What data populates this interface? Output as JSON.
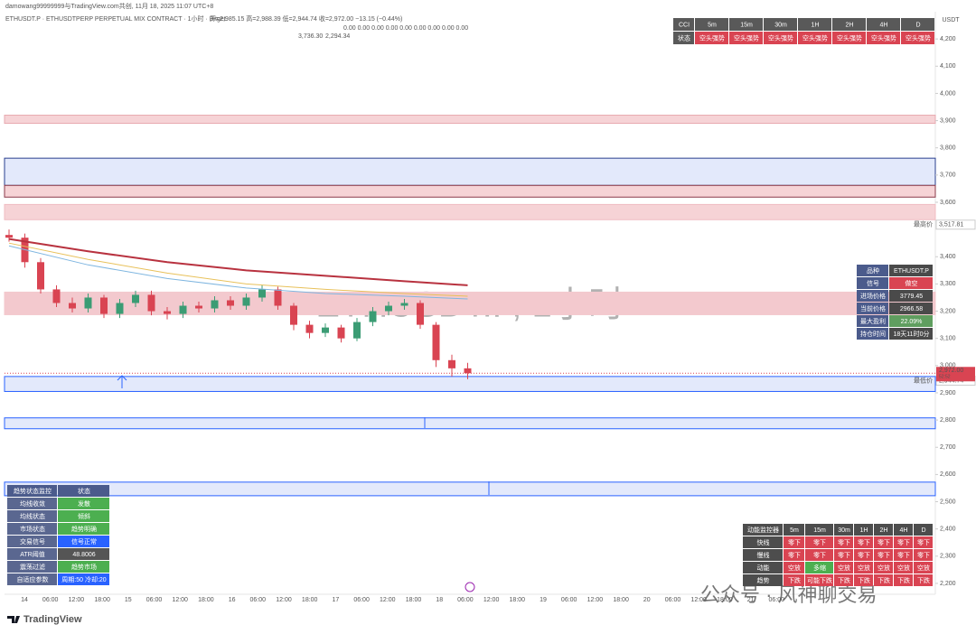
{
  "header": {
    "author_line": "damowang99999999与TradingView.com共创, 11月 18, 2025 11:07 UTC+8",
    "symbol_line": "ETHUSDT.P · ETHUSDTPERP PERPETUAL MIX CONTRACT · 1小时 · Bitget",
    "ohlc_line": "开=2,985.15 高=2,988.39 低=2,944.74 收=2,972.00 −13.15 (−0.44%)",
    "indicator_values": "0.00 0.00 0.00 0.00 0.00 0.00 0.00 0.00 0.00",
    "indicator_levels": [
      "3,736.30",
      "2,294.34"
    ],
    "currency": "USDT",
    "brand": "TradingView",
    "watermark_account": "公众号 · 风神聊交易"
  },
  "chart_data": {
    "type": "candlestick",
    "watermark": "ETHUSDT.P, 1小时",
    "categories": [
      "14",
      "06:00",
      "12:00",
      "18:00",
      "15",
      "06:00",
      "12:00",
      "18:00",
      "16",
      "06:00",
      "12:00",
      "18:00",
      "17",
      "06:00",
      "12:00",
      "18:00",
      "18",
      "06:00",
      "12:00",
      "18:00",
      "19",
      "06:00",
      "12:00",
      "18:00",
      "20",
      "06:00",
      "12:00",
      "18:00",
      "21",
      "06:00"
    ],
    "open": [
      3480,
      3470,
      3380,
      3280,
      3230,
      3210,
      3250,
      3190,
      3230,
      3260,
      3200,
      3190,
      3220,
      3210,
      3240,
      3220,
      3250,
      3280,
      3220,
      3150,
      3120,
      3140,
      3100,
      3160,
      3200,
      3220,
      3230,
      3150,
      3020,
      2990
    ],
    "high": [
      3500,
      3485,
      3395,
      3295,
      3250,
      3265,
      3260,
      3245,
      3275,
      3275,
      3215,
      3235,
      3235,
      3255,
      3255,
      3265,
      3295,
      3290,
      3230,
      3165,
      3155,
      3150,
      3175,
      3215,
      3235,
      3245,
      3240,
      3160,
      3040,
      3010
    ],
    "low": [
      3455,
      3360,
      3265,
      3215,
      3195,
      3195,
      3175,
      3175,
      3215,
      3185,
      3170,
      3175,
      3195,
      3195,
      3205,
      3205,
      3235,
      3205,
      3130,
      3100,
      3105,
      3085,
      3090,
      3145,
      3185,
      3205,
      3135,
      2995,
      2960,
      2950
    ],
    "close": [
      3470,
      3380,
      3280,
      3230,
      3210,
      3250,
      3190,
      3230,
      3260,
      3200,
      3190,
      3220,
      3210,
      3240,
      3220,
      3250,
      3280,
      3220,
      3150,
      3120,
      3140,
      3100,
      3160,
      3200,
      3220,
      3230,
      3150,
      3020,
      2990,
      2972
    ],
    "up_color": "#3b9c74",
    "down_color": "#d94452",
    "ma_x": [
      0,
      5,
      10,
      15,
      20,
      25,
      29
    ],
    "ma": [
      {
        "color": "#b8323f",
        "values": [
          3465,
          3420,
          3380,
          3350,
          3330,
          3310,
          3295
        ]
      },
      {
        "color": "#e8c15a",
        "values": [
          3450,
          3390,
          3340,
          3300,
          3280,
          3265,
          3255
        ]
      },
      {
        "color": "#7fb6e0",
        "values": [
          3440,
          3370,
          3320,
          3285,
          3265,
          3255,
          3245
        ]
      }
    ],
    "ylim": [
      2160,
      4300
    ],
    "yticks": [
      {
        "value": 2200,
        "label": "2,200"
      },
      {
        "value": 2300,
        "label": "2,300"
      },
      {
        "value": 2400,
        "label": "2,400"
      },
      {
        "value": 2500,
        "label": "2,500"
      },
      {
        "value": 2600,
        "label": "2,600"
      },
      {
        "value": 2700,
        "label": "2,700"
      },
      {
        "value": 2800,
        "label": "2,800"
      },
      {
        "value": 2900,
        "label": "2,900"
      },
      {
        "value": 3000,
        "label": "3,000"
      },
      {
        "value": 3100,
        "label": "3,100"
      },
      {
        "value": 3200,
        "label": "3,200"
      },
      {
        "value": 3300,
        "label": "3,300"
      },
      {
        "value": 3400,
        "label": "3,400"
      },
      {
        "value": 3600,
        "label": "3,600"
      },
      {
        "value": 3700,
        "label": "3,700"
      },
      {
        "value": 3800,
        "label": "3,800"
      },
      {
        "value": 3900,
        "label": "3,900"
      },
      {
        "value": 4000,
        "label": "4,000"
      },
      {
        "value": 4100,
        "label": "4,100"
      },
      {
        "value": 4200,
        "label": "4,200"
      }
    ],
    "zones": [
      {
        "from": 3890,
        "to": 3920,
        "color": "#f6d3d6",
        "border": "#e7a9b0"
      },
      {
        "from": 3662,
        "to": 3762,
        "color": "#e3e9fb",
        "border": "#2a3f8f"
      },
      {
        "from": 3619,
        "to": 3662,
        "color": "#f6d3d6",
        "border": "#8b3a4a"
      },
      {
        "from": 3536,
        "to": 3592,
        "color": "#f6d3d6",
        "border": "#f0bcc2"
      },
      {
        "from": 3187,
        "to": 3270,
        "color": "#f3c9ce",
        "border": "#f3c9ce"
      },
      {
        "from": 2905,
        "to": 2960,
        "color": "#e3e9fb",
        "border": "#2962ff"
      },
      {
        "from": 2768,
        "to": 2808,
        "color": "#e3e9fb",
        "border": "#2962ff"
      },
      {
        "from": 2522,
        "to": 2572,
        "color": "#e3e9fb",
        "border": "#2962ff"
      }
    ],
    "price_marks": [
      {
        "label": "最高价",
        "value": 3517.81,
        "value_label": "3,517.81",
        "color": "#333333"
      },
      {
        "label": "最低价",
        "value": 2944.74,
        "value_label": "2,944.74",
        "color": "#333333"
      }
    ],
    "last_price": {
      "value": 2972.0,
      "value_label": "2,972.00",
      "countdown": "52:52",
      "color": "#d94452"
    }
  },
  "panels": {
    "cci": {
      "rows": [
        [
          "CCI",
          "5m",
          "15m",
          "30m",
          "1H",
          "2H",
          "4H",
          "D"
        ],
        [
          "状态",
          "空头强势",
          "空头强势",
          "空头强势",
          "空头强势",
          "空头强势",
          "空头强势",
          "空头强势"
        ]
      ],
      "colors": [
        [
          "#595959",
          "#595959",
          "#595959",
          "#595959",
          "#595959",
          "#595959",
          "#595959",
          "#595959"
        ],
        [
          "#595959",
          "#d94452",
          "#d94452",
          "#d94452",
          "#d94452",
          "#d94452",
          "#d94452",
          "#d94452"
        ]
      ]
    },
    "info": {
      "rows": [
        [
          "品种",
          "ETHUSDT.P"
        ],
        [
          "信号",
          "做空"
        ],
        [
          "进场价格",
          "3779.45"
        ],
        [
          "当前价格",
          "2966.58"
        ],
        [
          "最大盈利",
          "22.09%"
        ],
        [
          "持仓时间",
          "18天11时0分"
        ]
      ],
      "colors": [
        [
          "#4b5b8c",
          "#4a4a4a"
        ],
        [
          "#4b5b8c",
          "#d94452"
        ],
        [
          "#4b5b8c",
          "#4a4a4a"
        ],
        [
          "#4b5b8c",
          "#4a4a4a"
        ],
        [
          "#4b5b8c",
          "#5f9e5f"
        ],
        [
          "#4b5b8c",
          "#4a4a4a"
        ]
      ]
    },
    "trend": {
      "rows": [
        [
          "趋势状态监控",
          "状态"
        ],
        [
          "均线收敛",
          "发散"
        ],
        [
          "均线状态",
          "倾斜"
        ],
        [
          "市场状态",
          "趋势明确"
        ],
        [
          "交易信号",
          "信号正常"
        ],
        [
          "ATR阈值",
          "48.8006"
        ],
        [
          "震荡过滤",
          "趋势市场"
        ],
        [
          "自适应参数",
          "周期:50 冷却:20"
        ]
      ],
      "colors": [
        [
          "#4b5b8c",
          "#4b5b8c"
        ],
        [
          "#5a6790",
          "#4caf50"
        ],
        [
          "#5a6790",
          "#4caf50"
        ],
        [
          "#5a6790",
          "#4caf50"
        ],
        [
          "#5a6790",
          "#2962ff"
        ],
        [
          "#5a6790",
          "#555555"
        ],
        [
          "#5a6790",
          "#4caf50"
        ],
        [
          "#5a6790",
          "#2962ff"
        ]
      ]
    },
    "momentum": {
      "rows": [
        [
          "动能监控器",
          "5m",
          "15m",
          "30m",
          "1H",
          "2H",
          "4H",
          "D"
        ],
        [
          "快线",
          "零下",
          "零下",
          "零下",
          "零下",
          "零下",
          "零下",
          "零下"
        ],
        [
          "慢线",
          "零下",
          "零下",
          "零下",
          "零下",
          "零下",
          "零下",
          "零下"
        ],
        [
          "动能",
          "空放",
          "多缩",
          "空放",
          "空放",
          "空放",
          "空放",
          "空放"
        ],
        [
          "趋势",
          "下跌",
          "可能下跌",
          "下跌",
          "下跌",
          "下跌",
          "下跌",
          "下跌"
        ]
      ],
      "colors": [
        [
          "#4d4d4d",
          "#4d4d4d",
          "#4d4d4d",
          "#4d4d4d",
          "#4d4d4d",
          "#4d4d4d",
          "#4d4d4d",
          "#4d4d4d"
        ],
        [
          "#4d4d4d",
          "#d94452",
          "#d94452",
          "#d94452",
          "#d94452",
          "#d94452",
          "#d94452",
          "#d94452"
        ],
        [
          "#4d4d4d",
          "#d94452",
          "#d94452",
          "#d94452",
          "#d94452",
          "#d94452",
          "#d94452",
          "#d94452"
        ],
        [
          "#4d4d4d",
          "#d94452",
          "#4caf50",
          "#d94452",
          "#d94452",
          "#d94452",
          "#d94452",
          "#d94452"
        ],
        [
          "#4d4d4d",
          "#d94452",
          "#d94452",
          "#d94452",
          "#d94452",
          "#d94452",
          "#d94452",
          "#d94452"
        ]
      ]
    }
  }
}
